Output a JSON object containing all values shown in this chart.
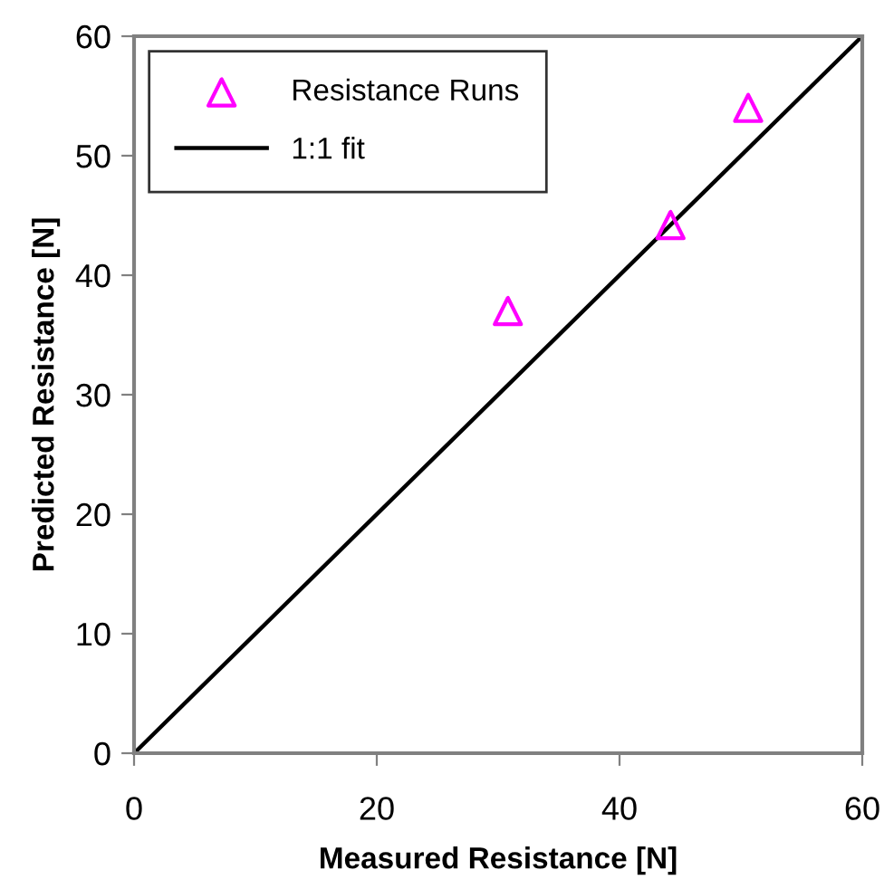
{
  "chart_data": {
    "type": "scatter",
    "xlabel": "Measured Resistance [N]",
    "ylabel": "Predicted Resistance [N]",
    "series": [
      {
        "name": "Resistance Runs",
        "color": "#ff00ff",
        "marker": "triangle",
        "x": [
          30.8,
          44.2,
          50.6
        ],
        "values": [
          37.0,
          44.2,
          54.0
        ]
      },
      {
        "name": "1:1 fit",
        "type": "line",
        "color": "#000000",
        "marker": "none",
        "x": [
          0,
          60
        ],
        "values": [
          0,
          60
        ]
      }
    ],
    "xlim": [
      0,
      60
    ],
    "ylim": [
      0,
      60
    ],
    "xticks": [
      0,
      20,
      40,
      60
    ],
    "yticks": [
      0,
      10,
      20,
      30,
      40,
      50,
      60
    ],
    "grid": false,
    "legend": "top left"
  }
}
